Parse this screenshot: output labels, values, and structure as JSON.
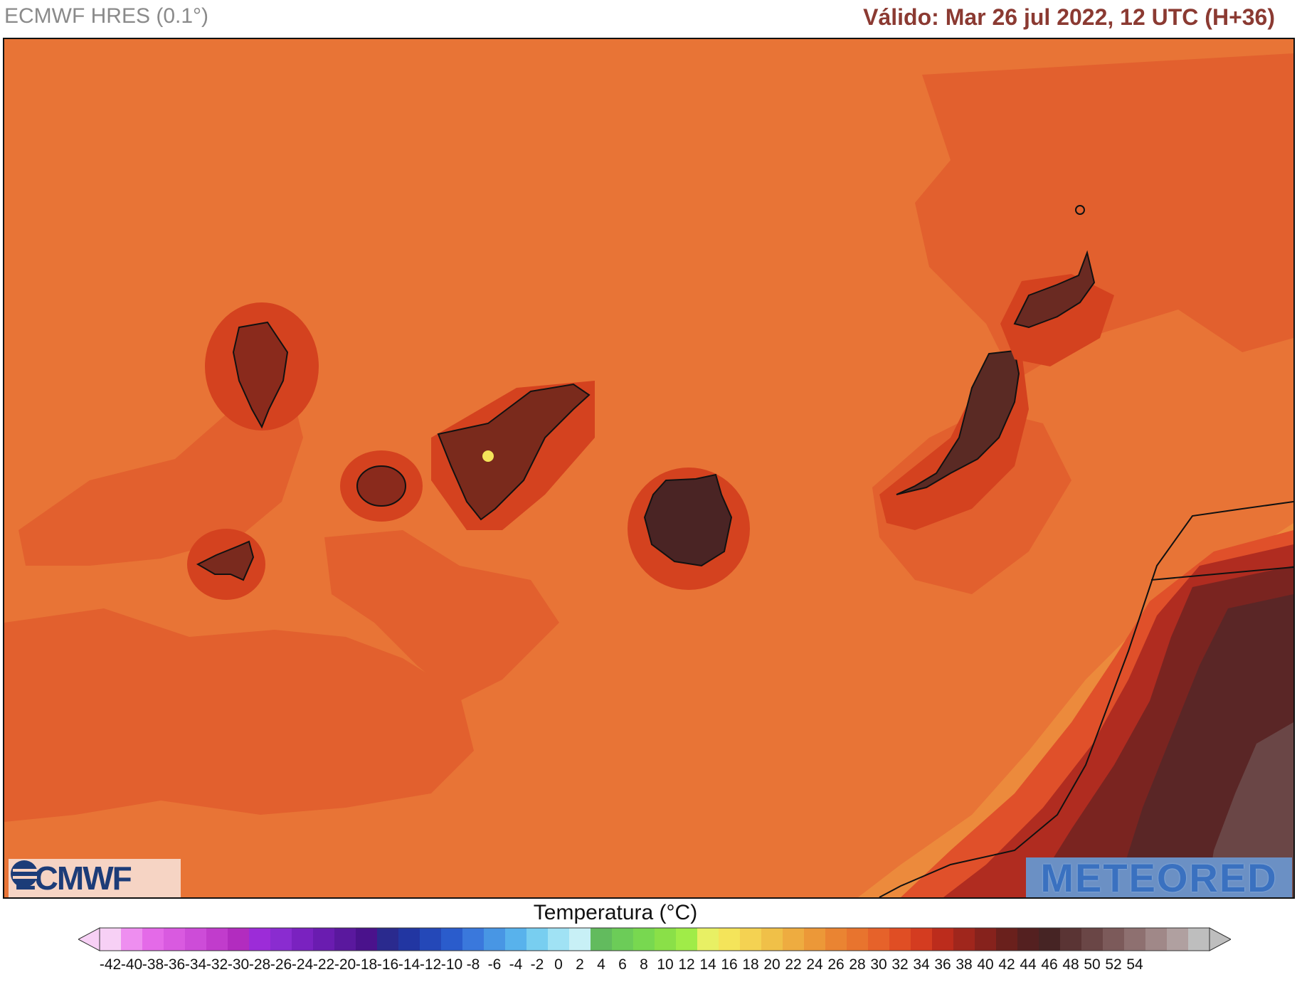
{
  "header": {
    "model": "ECMWF HRES (0.1°)",
    "valid": "Válido: Mar 26 jul 2022, 12 UTC (H+36)"
  },
  "logos": {
    "left": "ECMWF",
    "right": "METEORED"
  },
  "legend": {
    "title": "Temperatura (°C)",
    "ticks": [
      -42,
      -40,
      -38,
      -36,
      -34,
      -32,
      -30,
      -28,
      -26,
      -24,
      -22,
      -20,
      -18,
      -16,
      -14,
      -12,
      -10,
      -8,
      -6,
      -4,
      -2,
      0,
      2,
      4,
      6,
      8,
      10,
      12,
      14,
      16,
      18,
      20,
      22,
      24,
      26,
      28,
      30,
      32,
      34,
      36,
      38,
      40,
      42,
      44,
      46,
      48,
      50,
      52,
      54
    ],
    "colors": [
      "#f7d0f5",
      "#ee8ef0",
      "#e46ae8",
      "#d95ae0",
      "#cd4cd8",
      "#c13ccc",
      "#b22cbf",
      "#9c2cd8",
      "#8a2cd0",
      "#7a22c0",
      "#6a1cb0",
      "#5a189e",
      "#4a128c",
      "#2a2a8e",
      "#2236a2",
      "#2448b8",
      "#2a5ccc",
      "#3a78dc",
      "#4896e4",
      "#58b2ec",
      "#78cef0",
      "#a0e2f4",
      "#c8f0f6",
      "#62bb5e",
      "#6ccc58",
      "#78d850",
      "#8ae048",
      "#a0ec48",
      "#e8f064",
      "#f4e45a",
      "#f4d252",
      "#f0c048",
      "#eeac40",
      "#ec9838",
      "#ea8432",
      "#e8742e",
      "#e6622a",
      "#e04e24",
      "#d43c20",
      "#bc2c1c",
      "#a0261c",
      "#86221c",
      "#6a201c",
      "#542020",
      "#462424",
      "#5a3434",
      "#6a4646",
      "#7c5a5a",
      "#8e7070",
      "#a08888",
      "#b0a0a0",
      "#bebebe"
    ]
  }
}
